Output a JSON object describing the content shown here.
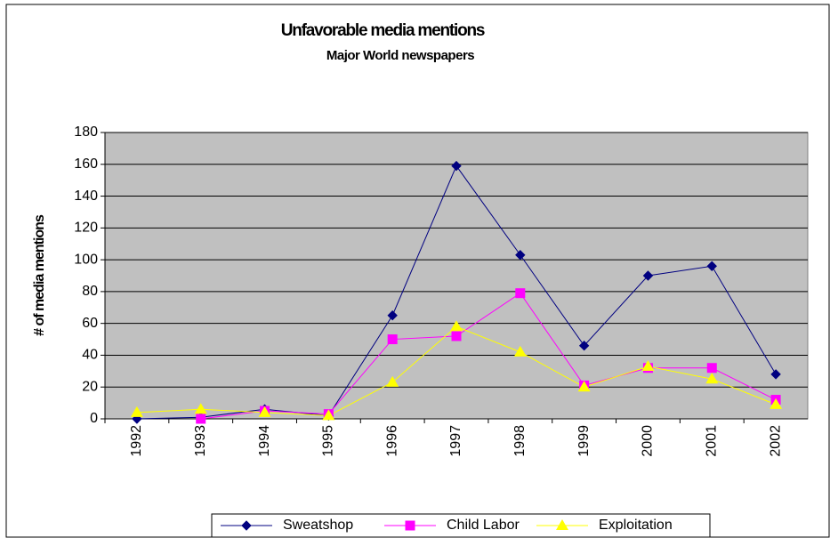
{
  "chart_data": {
    "type": "line",
    "title": "Unfavorable media mentions",
    "subtitle": "Major World newspapers",
    "ylabel": "# of media mentions",
    "categories": [
      "1992",
      "1993",
      "1994",
      "1995",
      "1996",
      "1997",
      "1998",
      "1999",
      "2000",
      "2001",
      "2002"
    ],
    "series": [
      {
        "name": "Sweatshop",
        "color": "#000080",
        "marker": "diamond",
        "values": [
          0,
          1,
          6,
          2,
          65,
          159,
          103,
          46,
          90,
          96,
          28
        ]
      },
      {
        "name": "Child Labor",
        "color": "#ff00ff",
        "marker": "square",
        "values": [
          null,
          0,
          5,
          3,
          50,
          52,
          79,
          21,
          32,
          32,
          12
        ]
      },
      {
        "name": "Exploitation",
        "color": "#ffff00",
        "marker": "triangle",
        "values": [
          4,
          6,
          4,
          2,
          23,
          58,
          42,
          20,
          33,
          25,
          9
        ]
      }
    ],
    "ylim": [
      0,
      180
    ],
    "yticks": [
      0,
      20,
      40,
      60,
      80,
      100,
      120,
      140,
      160,
      180
    ],
    "grid": true,
    "legend": "bottom"
  }
}
